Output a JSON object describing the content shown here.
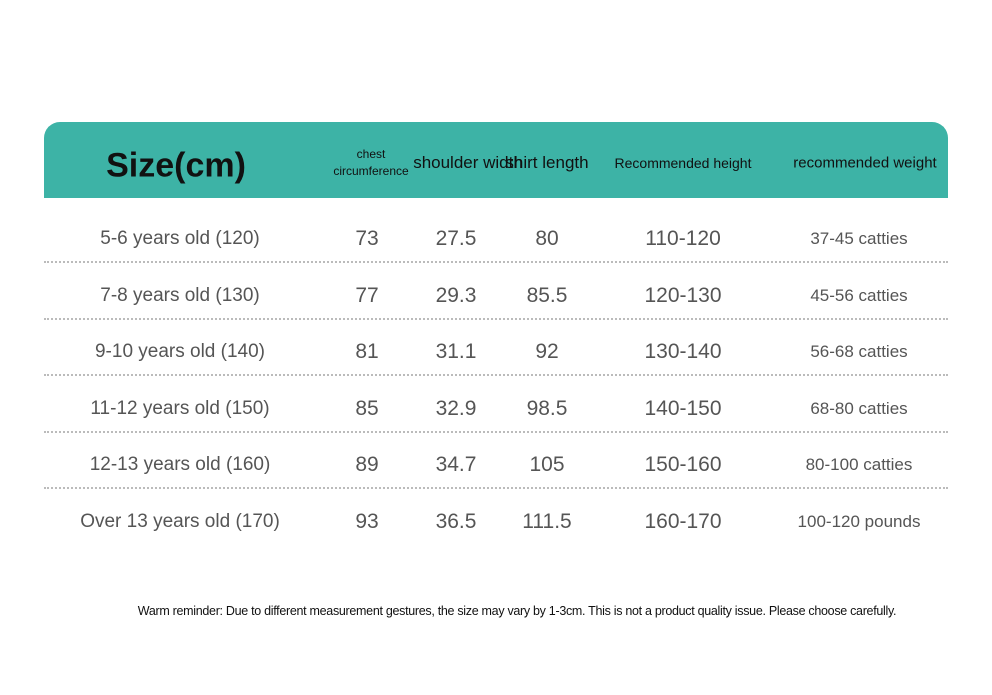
{
  "table": {
    "header": [
      "Size(cm)",
      "chest circumference",
      "shoulder width",
      "shirt length",
      "Recommended height",
      "recommended weight"
    ],
    "rows": [
      [
        "5-6 years old (120)",
        "73",
        "27.5",
        "80",
        "110-120",
        "37-45 catties"
      ],
      [
        "7-8 years old (130)",
        "77",
        "29.3",
        "85.5",
        "120-130",
        "45-56 catties"
      ],
      [
        "9-10 years old (140)",
        "81",
        "31.1",
        "92",
        "130-140",
        "56-68 catties"
      ],
      [
        "11-12 years old (150)",
        "85",
        "32.9",
        "98.5",
        "140-150",
        "68-80 catties"
      ],
      [
        "12-13 years old (160)",
        "89",
        "34.7",
        "105",
        "150-160",
        "80-100 catties"
      ],
      [
        "Over 13 years old (170)",
        "93",
        "36.5",
        "111.5",
        "160-170",
        "100-120 pounds"
      ]
    ]
  },
  "footer": {
    "note": "Warm reminder: Due to different measurement gestures, the size may vary by 1-3cm. This is not a product quality issue. Please choose carefully."
  }
}
